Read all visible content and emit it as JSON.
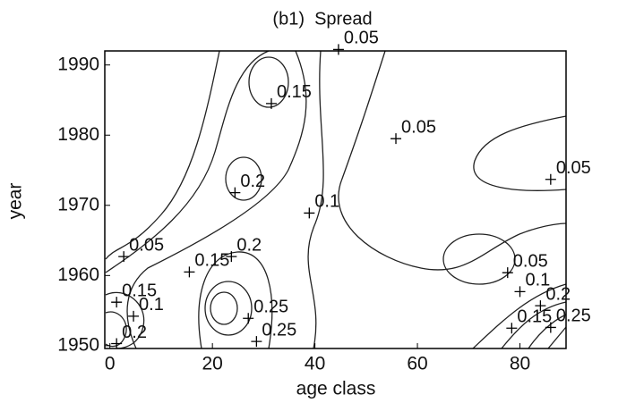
{
  "chart_data": {
    "type": "contour",
    "title": "(b1)  Spread",
    "xlabel": "age class",
    "ylabel": "year",
    "xlim": [
      -1,
      89
    ],
    "ylim": [
      1949.6,
      1992
    ],
    "xticks": [
      0,
      20,
      40,
      60,
      80
    ],
    "yticks": [
      1950,
      1960,
      1970,
      1980,
      1990
    ],
    "color": "#000000",
    "annotations": [
      {
        "text": "0.05",
        "x": 44.6,
        "y": 1992.2
      },
      {
        "text": "0.15",
        "x": 31.5,
        "y": 1984.5
      },
      {
        "text": "0.05",
        "x": 55.8,
        "y": 1979.5
      },
      {
        "text": "0.2",
        "x": 24.4,
        "y": 1971.8
      },
      {
        "text": "0.05",
        "x": 86,
        "y": 1973.7
      },
      {
        "text": "0.1",
        "x": 38.9,
        "y": 1968.9
      },
      {
        "text": "0.05",
        "x": 2.7,
        "y": 1962.7
      },
      {
        "text": "0.2",
        "x": 23.7,
        "y": 1962.7
      },
      {
        "text": "0.15",
        "x": 15.5,
        "y": 1960.5
      },
      {
        "text": "0.15",
        "x": 1.3,
        "y": 1956.2
      },
      {
        "text": "0.1",
        "x": 4.6,
        "y": 1954.2
      },
      {
        "text": "0.2",
        "x": 1.3,
        "y": 1950.3
      },
      {
        "text": "0.25",
        "x": 27,
        "y": 1953.9
      },
      {
        "text": "0.25",
        "x": 28.6,
        "y": 1950.6
      },
      {
        "text": "0.05",
        "x": 77.6,
        "y": 1960.4
      },
      {
        "text": "0.1",
        "x": 80,
        "y": 1957.7
      },
      {
        "text": "0.2",
        "x": 84,
        "y": 1955.7
      },
      {
        "text": "0.15",
        "x": 78.4,
        "y": 1952.5
      },
      {
        "text": "0.25",
        "x": 86,
        "y": 1952.6
      }
    ]
  }
}
